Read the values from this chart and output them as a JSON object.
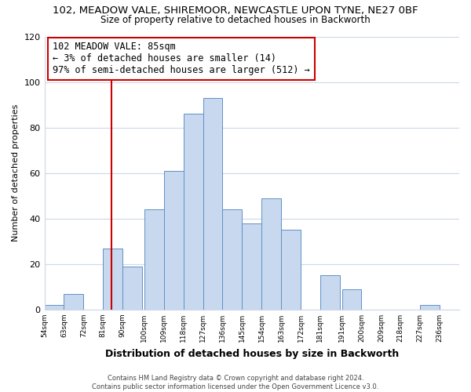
{
  "title_line1": "102, MEADOW VALE, SHIREMOOR, NEWCASTLE UPON TYNE, NE27 0BF",
  "title_line2": "Size of property relative to detached houses in Backworth",
  "xlabel": "Distribution of detached houses by size in Backworth",
  "ylabel": "Number of detached properties",
  "bar_left_edges": [
    54,
    63,
    72,
    81,
    90,
    100,
    109,
    118,
    127,
    136,
    145,
    154,
    163,
    172,
    181,
    191,
    200,
    209,
    218,
    227
  ],
  "bar_heights": [
    2,
    7,
    0,
    27,
    19,
    44,
    61,
    86,
    93,
    44,
    38,
    49,
    35,
    0,
    15,
    9,
    0,
    0,
    0,
    2
  ],
  "bar_color": "#c8d8ee",
  "bar_edgecolor": "#6090c8",
  "vline_x": 85,
  "vline_color": "#cc0000",
  "annotation_text": "102 MEADOW VALE: 85sqm\n← 3% of detached houses are smaller (14)\n97% of semi-detached houses are larger (512) →",
  "annotation_box_color": "#cc0000",
  "ylim": [
    0,
    120
  ],
  "yticks": [
    0,
    20,
    40,
    60,
    80,
    100,
    120
  ],
  "xtick_labels": [
    "54sqm",
    "63sqm",
    "72sqm",
    "81sqm",
    "90sqm",
    "100sqm",
    "109sqm",
    "118sqm",
    "127sqm",
    "136sqm",
    "145sqm",
    "154sqm",
    "163sqm",
    "172sqm",
    "181sqm",
    "191sqm",
    "200sqm",
    "209sqm",
    "218sqm",
    "227sqm",
    "236sqm"
  ],
  "xtick_positions": [
    54,
    63,
    72,
    81,
    90,
    100,
    109,
    118,
    127,
    136,
    145,
    154,
    163,
    172,
    181,
    191,
    200,
    209,
    218,
    227,
    236
  ],
  "footer_text": "Contains HM Land Registry data © Crown copyright and database right 2024.\nContains public sector information licensed under the Open Government Licence v3.0.",
  "bg_color": "#ffffff",
  "grid_color": "#ccd8e8"
}
